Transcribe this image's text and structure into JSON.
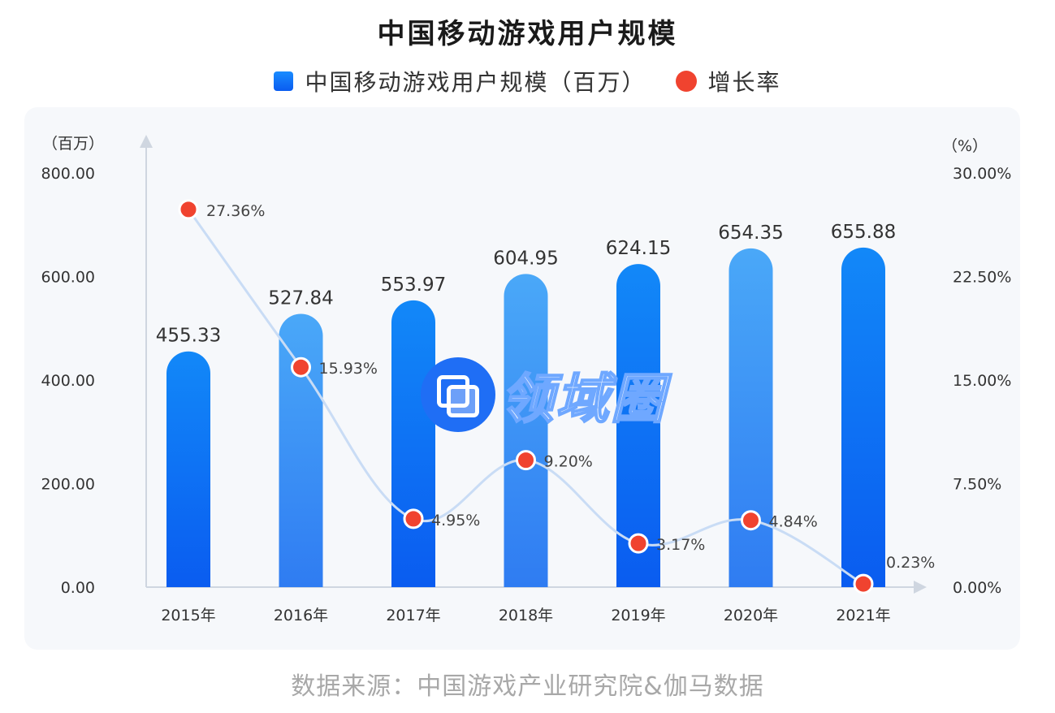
{
  "title": "中国移动游戏用户规模",
  "legend": {
    "bar_label": "中国移动游戏用户规模（百万）",
    "line_label": "增长率"
  },
  "source": "数据来源：中国游戏产业研究院&伽马数据",
  "watermark": "领域圈",
  "colors": {
    "bar_dark": "#0a5cf0",
    "bar_light": "#4aa8f8",
    "rate_dot": "#f0432f",
    "rate_line": "#c9dcf5"
  },
  "chart_data": {
    "type": "bar",
    "categories": [
      "2015年",
      "2016年",
      "2017年",
      "2018年",
      "2019年",
      "2020年",
      "2021年"
    ],
    "series": [
      {
        "name": "中国移动游戏用户规模（百万）",
        "type": "bar",
        "axis": "left",
        "values": [
          455.33,
          527.84,
          553.97,
          604.95,
          624.15,
          654.35,
          655.88
        ],
        "labels": [
          "455.33",
          "527.84",
          "553.97",
          "604.95",
          "624.15",
          "654.35",
          "655.88"
        ]
      },
      {
        "name": "增长率",
        "type": "line",
        "axis": "right",
        "values": [
          27.36,
          15.93,
          4.95,
          9.2,
          3.17,
          4.84,
          0.23
        ],
        "labels": [
          "27.36%",
          "15.93%",
          "4.95%",
          "9.20%",
          "3.17%",
          "4.84%",
          "0.23%"
        ]
      }
    ],
    "y_left": {
      "unit": "（百万）",
      "ylim": [
        0,
        800
      ],
      "ticks": [
        0,
        200,
        400,
        600,
        800
      ],
      "tick_labels": [
        "0.00",
        "200.00",
        "400.00",
        "600.00",
        "800.00"
      ]
    },
    "y_right": {
      "unit": "（%）",
      "ylim": [
        0,
        30
      ],
      "ticks": [
        0,
        7.5,
        15,
        22.5,
        30
      ],
      "tick_labels": [
        "0.00%",
        "7.50%",
        "15.00%",
        "22.50%",
        "30.00%"
      ]
    },
    "grid": false,
    "legend_position": "top-center"
  }
}
